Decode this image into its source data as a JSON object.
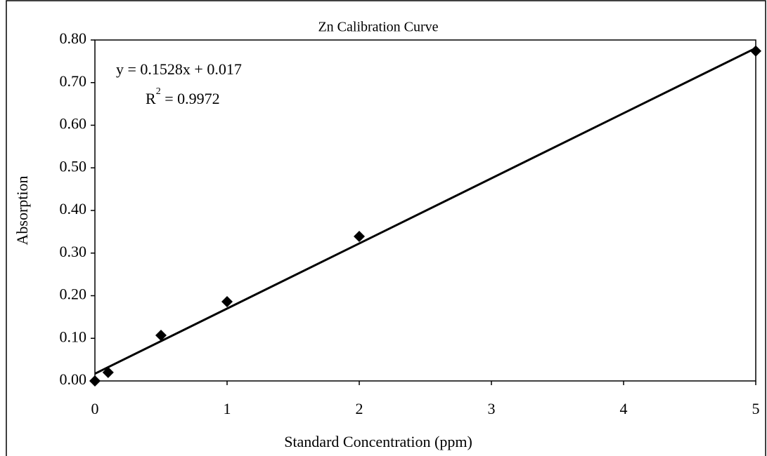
{
  "chart_data": {
    "type": "scatter",
    "title": "Zn Calibration Curve",
    "x_label": "Standard Concentration (ppm)",
    "y_label": "Absorption",
    "x": [
      0,
      0.1,
      0.5,
      1,
      2,
      5
    ],
    "series": [
      {
        "name": "Zn",
        "color": "#000000",
        "values": [
          0.0,
          0.02,
          0.107,
          0.186,
          0.339,
          0.774
        ]
      }
    ],
    "trendline": {
      "slope": 0.1528,
      "intercept": 0.017,
      "label": "y = 0.1528x + 0.017",
      "color": "#000000"
    },
    "r_squared": {
      "value": 0.9972,
      "base": "R",
      "sup": "2",
      "text": " = 0.9972"
    },
    "xlim": [
      0,
      5
    ],
    "xticks": [
      0,
      1,
      2,
      3,
      4,
      5
    ],
    "ylim": [
      0,
      0.8
    ],
    "yticks": [
      {
        "value": 0,
        "label": "0.00"
      },
      {
        "value": 0.1,
        "label": "0.10"
      },
      {
        "value": 0.2,
        "label": "0.20"
      },
      {
        "value": 0.3,
        "label": "0.30"
      },
      {
        "value": 0.4,
        "label": "0.40"
      },
      {
        "value": 0.5,
        "label": "0.50"
      },
      {
        "value": 0.6,
        "label": "0.60"
      },
      {
        "value": 0.7,
        "label": "0.70"
      },
      {
        "value": 0.8,
        "label": "0.80"
      }
    ],
    "grid": false,
    "legend": false
  }
}
